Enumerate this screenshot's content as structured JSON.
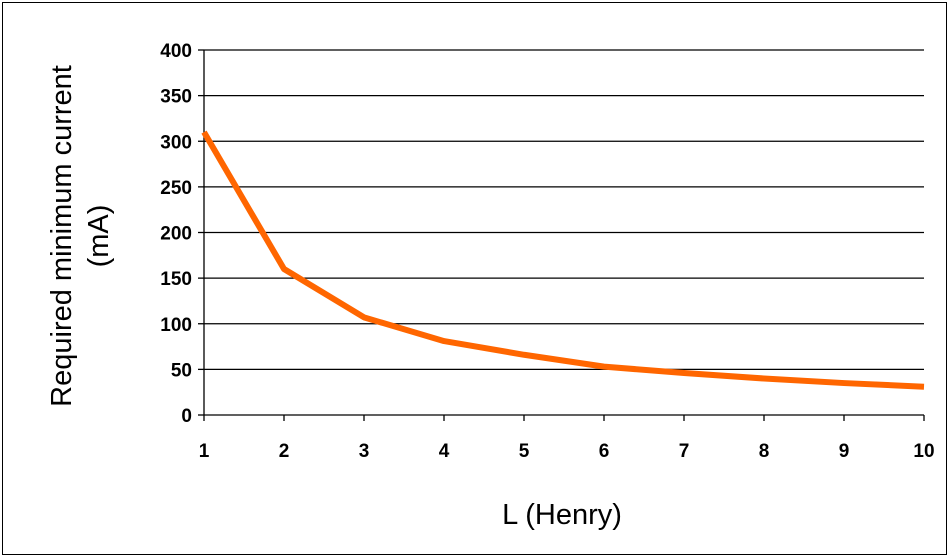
{
  "chart_data": {
    "type": "line",
    "title": "",
    "xlabel": "L (Henry)",
    "ylabel_lines": [
      "Required minimum current",
      "(mA)"
    ],
    "x": [
      1,
      2,
      3,
      4,
      5,
      6,
      7,
      8,
      9,
      10
    ],
    "series": [
      {
        "values": [
          310,
          160,
          107,
          81,
          66,
          53,
          46,
          40,
          35,
          31
        ],
        "color": "#ff6600"
      }
    ],
    "xlim": [
      1,
      10
    ],
    "ylim": [
      0,
      400
    ],
    "x_ticks": [
      1,
      2,
      3,
      4,
      5,
      6,
      7,
      8,
      9,
      10
    ],
    "y_ticks": [
      0,
      50,
      100,
      150,
      200,
      250,
      300,
      350,
      400
    ],
    "grid": true,
    "grid_axis": "y",
    "legend": "none"
  }
}
